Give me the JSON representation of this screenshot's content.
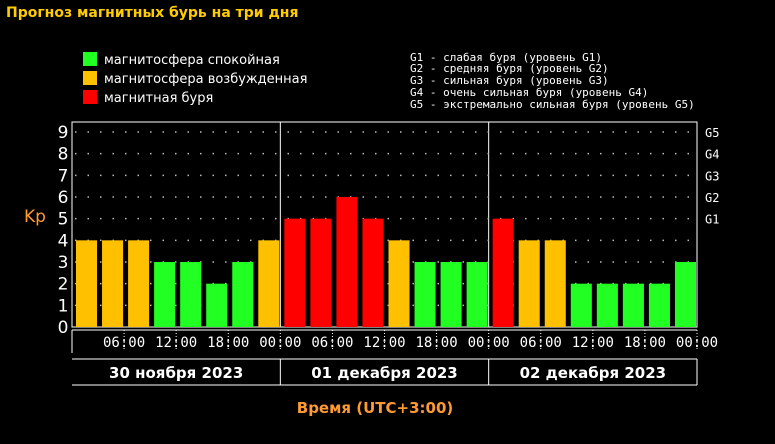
{
  "page": {
    "title": "Прогноз магнитных бурь на три дня"
  },
  "legend": [
    {
      "label": "магнитосфера спокойная",
      "color": "#22ff22"
    },
    {
      "label": "магнитосфера возбужденная",
      "color": "#ffc000"
    },
    {
      "label": "магнитная буря",
      "color": "#ff0000"
    }
  ],
  "g_levels": [
    "G1 - слабая буря (уровень G1)",
    "G2 - средняя буря (уровень G2)",
    "G3 - сильная буря (уровень G3)",
    "G4 - очень сильная буря (уровень G4)",
    "G5 - экстремально сильная буря (уровень G5)"
  ],
  "chart_data": {
    "type": "bar",
    "title": "Прогноз магнитных бурь на три дня",
    "ylabel": "Kp",
    "xlabel": "Время (UTC+3:00)",
    "ylim": [
      0,
      9
    ],
    "yticks": [
      0,
      1,
      2,
      3,
      4,
      5,
      6,
      7,
      8,
      9
    ],
    "right_axis": [
      {
        "label": "G5",
        "kp": 9
      },
      {
        "label": "G4",
        "kp": 8
      },
      {
        "label": "G3",
        "kp": 7
      },
      {
        "label": "G2",
        "kp": 6
      },
      {
        "label": "G1",
        "kp": 5
      }
    ],
    "x_tick_labels": [
      "06:00",
      "12:00",
      "18:00",
      "00:00",
      "06:00",
      "12:00",
      "18:00",
      "00:00",
      "06:00",
      "12:00",
      "18:00",
      "00:00"
    ],
    "days": [
      "30 ноября 2023",
      "01 декабря 2023",
      "02 декабря 2023"
    ],
    "values": [
      4,
      4,
      4,
      3,
      3,
      2,
      3,
      4,
      5,
      5,
      6,
      5,
      4,
      3,
      3,
      3,
      5,
      4,
      4,
      2,
      2,
      2,
      2,
      3
    ],
    "colors": {
      "calm": "#22ff22",
      "active": "#ffc000",
      "storm": "#ff0000"
    },
    "grid": true
  }
}
